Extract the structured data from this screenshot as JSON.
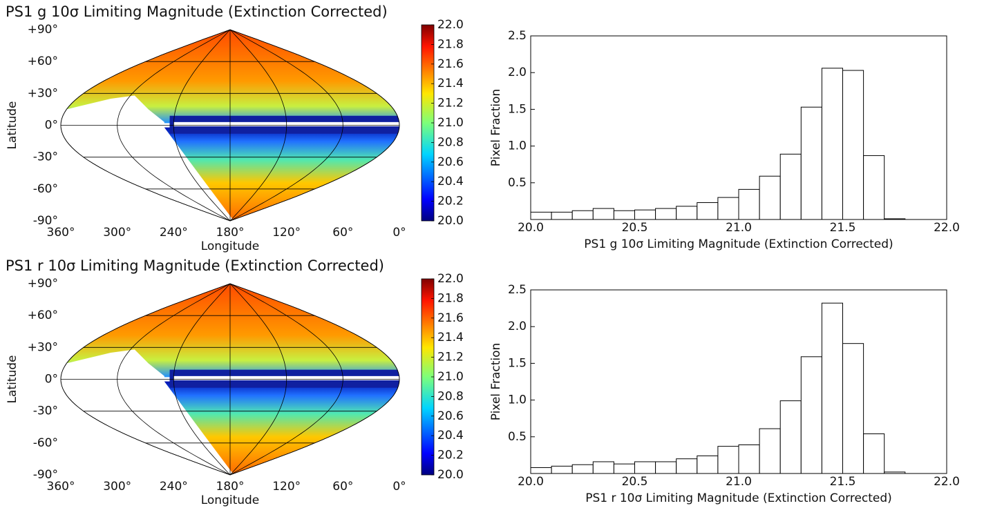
{
  "chart_data": [
    {
      "type": "skymap",
      "title": "PS1 g 10σ Limiting Magnitude (Extinction Corrected)",
      "xlabel": "Longitude",
      "ylabel": "Latitude",
      "xlim": [
        360,
        0
      ],
      "ylim": [
        -90,
        90
      ],
      "xticks": [
        {
          "value": 360,
          "label": "360°"
        },
        {
          "value": 300,
          "label": "300°"
        },
        {
          "value": 240,
          "label": "240°"
        },
        {
          "value": 180,
          "label": "180°"
        },
        {
          "value": 120,
          "label": "120°"
        },
        {
          "value": 60,
          "label": "60°"
        },
        {
          "value": 0,
          "label": "0°"
        }
      ],
      "yticks": [
        {
          "value": 90,
          "label": "+90°"
        },
        {
          "value": 60,
          "label": "+60°"
        },
        {
          "value": 30,
          "label": "+30°"
        },
        {
          "value": 0,
          "label": "0°"
        },
        {
          "value": -30,
          "label": "-30°"
        },
        {
          "value": -60,
          "label": "-60°"
        },
        {
          "value": -90,
          "label": "-90°"
        }
      ],
      "colormap": "jet",
      "clim": [
        20,
        22
      ],
      "cticks": [
        {
          "value": 20,
          "label": "20.0"
        },
        20.2,
        20.4,
        20.6,
        20.8,
        {
          "value": 21,
          "label": "21.0"
        },
        21.2,
        21.4,
        21.6,
        21.8,
        {
          "value": 22,
          "label": "22.0"
        }
      ]
    },
    {
      "type": "histogram",
      "xlabel": "PS1 g 10σ Limiting Magnitude (Extinction Corrected)",
      "ylabel": "Pixel Fraction",
      "bins": [
        20,
        20.1,
        20.2,
        20.3,
        20.4,
        20.5,
        20.6,
        20.7,
        20.8,
        20.9,
        21,
        21.1,
        21.2,
        21.3,
        21.4,
        21.5,
        21.6,
        21.7,
        21.8,
        21.9,
        22
      ],
      "values": [
        0.1,
        0.1,
        0.12,
        0.15,
        0.12,
        0.13,
        0.15,
        0.18,
        0.23,
        0.3,
        0.41,
        0.59,
        0.89,
        1.53,
        2.06,
        2.03,
        0.87,
        0.01,
        0,
        0
      ],
      "color": "#ffffff",
      "edgecolor": "#000000",
      "xlim": [
        20,
        22
      ],
      "ylim": [
        0,
        2.5
      ],
      "xticks": [
        {
          "value": 20,
          "label": "20.0"
        },
        20.5,
        {
          "value": 21,
          "label": "21.0"
        },
        21.5,
        {
          "value": 22,
          "label": "22.0"
        }
      ],
      "yticks": [
        0.5,
        {
          "value": 1,
          "label": "1.0"
        },
        1.5,
        {
          "value": 2,
          "label": "2.0"
        },
        2.5
      ]
    },
    {
      "type": "skymap",
      "title": "PS1 r 10σ Limiting Magnitude (Extinction Corrected)",
      "xlabel": "Longitude",
      "ylabel": "Latitude",
      "xlim": [
        360,
        0
      ],
      "ylim": [
        -90,
        90
      ],
      "xticks": [
        {
          "value": 360,
          "label": "360°"
        },
        {
          "value": 300,
          "label": "300°"
        },
        {
          "value": 240,
          "label": "240°"
        },
        {
          "value": 180,
          "label": "180°"
        },
        {
          "value": 120,
          "label": "120°"
        },
        {
          "value": 60,
          "label": "60°"
        },
        {
          "value": 0,
          "label": "0°"
        }
      ],
      "yticks": [
        {
          "value": 90,
          "label": "+90°"
        },
        {
          "value": 60,
          "label": "+60°"
        },
        {
          "value": 30,
          "label": "+30°"
        },
        {
          "value": 0,
          "label": "0°"
        },
        {
          "value": -30,
          "label": "-30°"
        },
        {
          "value": -60,
          "label": "-60°"
        },
        {
          "value": -90,
          "label": "-90°"
        }
      ],
      "colormap": "jet",
      "clim": [
        20,
        22
      ],
      "cticks": [
        {
          "value": 20,
          "label": "20.0"
        },
        20.2,
        20.4,
        20.6,
        20.8,
        {
          "value": 21,
          "label": "21.0"
        },
        21.2,
        21.4,
        21.6,
        21.8,
        {
          "value": 22,
          "label": "22.0"
        }
      ]
    },
    {
      "type": "histogram",
      "xlabel": "PS1 r 10σ Limiting Magnitude (Extinction Corrected)",
      "ylabel": "Pixel Fraction",
      "bins": [
        20,
        20.1,
        20.2,
        20.3,
        20.4,
        20.5,
        20.6,
        20.7,
        20.8,
        20.9,
        21,
        21.1,
        21.2,
        21.3,
        21.4,
        21.5,
        21.6,
        21.7,
        21.8,
        21.9,
        22
      ],
      "values": [
        0.08,
        0.1,
        0.12,
        0.16,
        0.13,
        0.16,
        0.16,
        0.2,
        0.24,
        0.37,
        0.39,
        0.61,
        0.99,
        1.59,
        2.32,
        1.77,
        0.54,
        0.02,
        0,
        0
      ],
      "color": "#ffffff",
      "edgecolor": "#000000",
      "xlim": [
        20,
        22
      ],
      "ylim": [
        0,
        2.5
      ],
      "xticks": [
        {
          "value": 20,
          "label": "20.0"
        },
        20.5,
        {
          "value": 21,
          "label": "21.0"
        },
        21.5,
        {
          "value": 22,
          "label": "22.0"
        }
      ],
      "yticks": [
        0.5,
        {
          "value": 1,
          "label": "1.0"
        },
        1.5,
        {
          "value": 2,
          "label": "2.0"
        },
        2.5
      ]
    }
  ]
}
